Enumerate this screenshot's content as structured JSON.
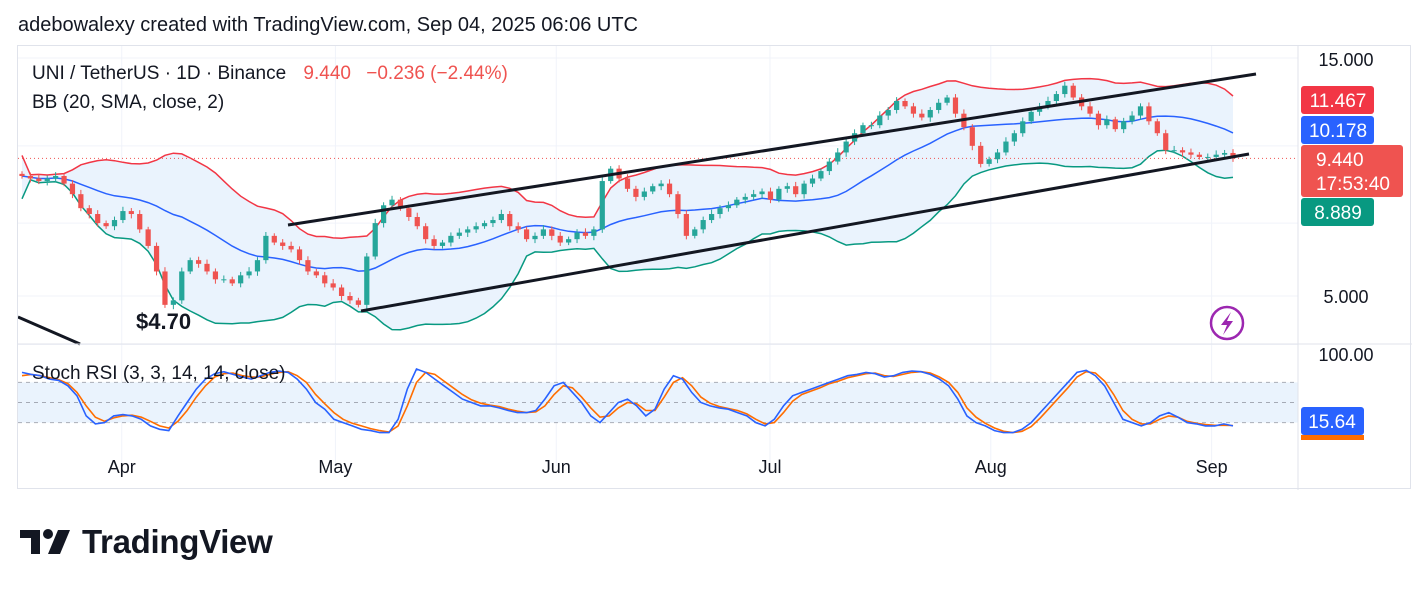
{
  "attribution": "adebowalexy created with TradingView.com, Sep 04, 2025 06:06 UTC",
  "legend": {
    "symbol": "UNI / TetherUS · 1D · Binance",
    "price": "9.440",
    "change": "−0.236 (−2.44%)",
    "indicator": "BB (20, SMA, close, 2)"
  },
  "rsi_legend": "Stoch RSI (3, 3, 14, 14, close)",
  "annotation_low": "$4.70",
  "price_badges": {
    "upper": "11.467",
    "basis": "10.178",
    "last": "9.440",
    "countdown": "17:53:40",
    "lower": "8.889",
    "rsi": "15.64"
  },
  "logo_text": "TradingView",
  "colors": {
    "up": "#26a69a",
    "down": "#ef5350",
    "bb_upper": "#f23645",
    "bb_basis": "#2962ff",
    "bb_lower": "#089981",
    "bb_fill": "#eaf3fd",
    "k_line": "#2962ff",
    "d_line": "#ff6d00",
    "channel": "#131722"
  },
  "chart_data": [
    {
      "type": "candlestick",
      "title": "UNI / TetherUS · 1D · Binance",
      "y_ticks": [
        "15.000",
        "5.000"
      ],
      "y_scale": "log",
      "x_ticks": [
        "Apr",
        "May",
        "Jun",
        "Jul",
        "Aug",
        "Sep"
      ],
      "x_range": [
        "2025-03-18",
        "2025-09-04"
      ],
      "close_series": [
        8.7,
        8.6,
        8.5,
        8.6,
        8.7,
        8.4,
        8.0,
        7.5,
        7.3,
        7.0,
        6.9,
        7.1,
        7.4,
        7.3,
        6.8,
        6.3,
        5.6,
        4.8,
        4.9,
        5.6,
        5.9,
        5.8,
        5.6,
        5.4,
        5.4,
        5.3,
        5.5,
        5.6,
        5.9,
        6.6,
        6.4,
        6.3,
        6.2,
        5.9,
        5.6,
        5.5,
        5.3,
        5.2,
        5.0,
        4.9,
        4.8,
        6.0,
        7.0,
        7.6,
        7.8,
        7.5,
        7.2,
        6.9,
        6.5,
        6.3,
        6.4,
        6.6,
        6.7,
        6.8,
        6.9,
        7.0,
        7.1,
        7.3,
        6.9,
        6.8,
        6.5,
        6.6,
        6.8,
        6.6,
        6.4,
        6.5,
        6.7,
        6.6,
        6.8,
        8.5,
        9.0,
        8.6,
        8.2,
        7.9,
        8.1,
        8.3,
        8.4,
        8.0,
        7.3,
        6.6,
        6.8,
        7.1,
        7.3,
        7.5,
        7.6,
        7.8,
        7.9,
        8.0,
        8.1,
        7.8,
        8.2,
        8.3,
        8.0,
        8.4,
        8.6,
        8.9,
        9.3,
        9.7,
        10.2,
        10.6,
        11.0,
        11.0,
        11.5,
        11.8,
        12.3,
        12.0,
        11.6,
        11.4,
        11.8,
        12.2,
        12.5,
        11.6,
        10.9,
        10.0,
        9.2,
        9.4,
        9.7,
        10.2,
        10.6,
        11.2,
        11.7,
        12.0,
        12.3,
        12.7,
        13.2,
        12.5,
        12.0,
        11.6,
        11.0,
        11.3,
        10.8,
        11.2,
        11.5,
        12.0,
        11.2,
        10.6,
        9.8,
        9.8,
        9.7,
        9.6,
        9.5,
        9.5,
        9.6,
        9.676,
        9.44
      ],
      "bb_upper": 11.467,
      "bb_basis": 10.178,
      "bb_lower": 8.889,
      "last_price": 9.44,
      "annotations": [
        "$4.70"
      ]
    },
    {
      "type": "line",
      "title": "Stoch RSI (3, 3, 14, 14, close)",
      "y_ticks": [
        "100.00"
      ],
      "bands": [
        20,
        80
      ],
      "ylim": [
        0,
        100
      ],
      "series": [
        {
          "values": [
            95,
            92,
            90,
            85,
            83,
            75,
            60,
            30,
            18,
            20,
            30,
            32,
            30,
            25,
            15,
            10,
            8,
            30,
            50,
            70,
            85,
            93,
            96,
            92,
            88,
            85,
            90,
            95,
            97,
            95,
            85,
            70,
            50,
            40,
            25,
            20,
            15,
            10,
            8,
            5,
            5,
            25,
            70,
            100,
            95,
            85,
            75,
            65,
            55,
            50,
            45,
            45,
            42,
            38,
            35,
            35,
            38,
            55,
            75,
            80,
            65,
            50,
            30,
            20,
            35,
            50,
            55,
            45,
            30,
            40,
            70,
            90,
            85,
            65,
            50,
            45,
            42,
            40,
            35,
            30,
            20,
            15,
            25,
            45,
            60,
            65,
            70,
            75,
            80,
            85,
            90,
            92,
            95,
            93,
            88,
            90,
            95,
            97,
            96,
            92,
            85,
            75,
            55,
            30,
            20,
            15,
            8,
            5,
            5,
            10,
            20,
            35,
            50,
            65,
            80,
            95,
            98,
            90,
            75,
            50,
            25,
            20,
            15,
            20,
            30,
            35,
            28,
            20,
            18,
            15,
            15,
            18,
            15
          ]
        },
        {
          "values": [
            90,
            92,
            90,
            87,
            84,
            78,
            65,
            45,
            28,
            22,
            27,
            30,
            31,
            28,
            22,
            15,
            12,
            22,
            38,
            58,
            75,
            88,
            93,
            94,
            90,
            88,
            88,
            92,
            95,
            96,
            90,
            80,
            62,
            48,
            35,
            25,
            19,
            15,
            11,
            8,
            6,
            15,
            45,
            80,
            95,
            92,
            82,
            72,
            62,
            54,
            49,
            46,
            44,
            40,
            37,
            35,
            36,
            45,
            62,
            75,
            72,
            58,
            42,
            28,
            30,
            42,
            50,
            48,
            38,
            38,
            58,
            80,
            87,
            75,
            58,
            49,
            44,
            41,
            38,
            33,
            25,
            18,
            20,
            35,
            52,
            62,
            67,
            72,
            78,
            82,
            87,
            90,
            93,
            94,
            90,
            89,
            92,
            95,
            96,
            94,
            88,
            80,
            65,
            42,
            28,
            19,
            12,
            7,
            5,
            7,
            14,
            27,
            42,
            57,
            72,
            88,
            96,
            94,
            82,
            62,
            38,
            25,
            18,
            18,
            25,
            30,
            28,
            22,
            19,
            17,
            16,
            16,
            15.64
          ]
        }
      ],
      "last_value": 15.64
    }
  ]
}
